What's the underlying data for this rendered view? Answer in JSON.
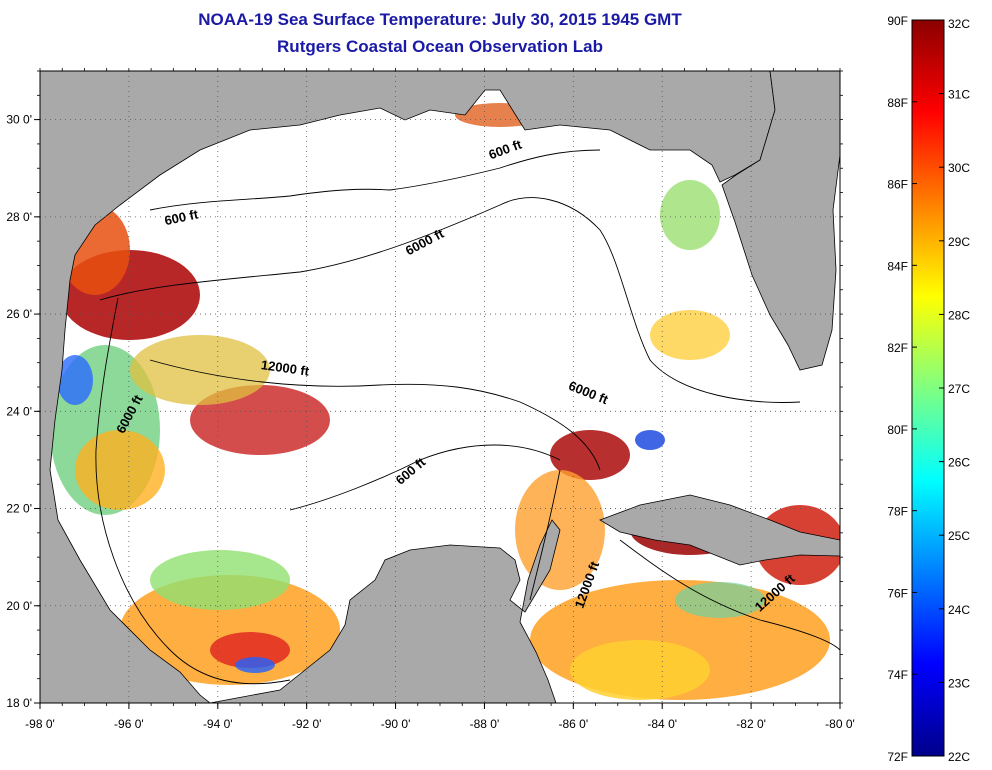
{
  "title": {
    "line1": "NOAA-19 Sea Surface Temperature:  July 30, 2015 1945 GMT",
    "line2": "Rutgers Coastal Ocean Observation Lab"
  },
  "map": {
    "x_ticks": [
      "-98 0'",
      "-96 0'",
      "-94 0'",
      "-92 0'",
      "-90 0'",
      "-88 0'",
      "-86 0'",
      "-84 0'",
      "-82 0'",
      "-80 0'"
    ],
    "y_ticks": [
      "18 0'",
      "20 0'",
      "22 0'",
      "24 0'",
      "26 0'",
      "28 0'",
      "30 0'"
    ],
    "lon_range": [
      -98,
      -80
    ],
    "lat_range": [
      18,
      31
    ],
    "contour_labels": [
      {
        "text": "600 ft",
        "lon": -94.8,
        "lat": 27.9,
        "angle": -12
      },
      {
        "text": "600 ft",
        "lon": -87.5,
        "lat": 29.3,
        "angle": -20
      },
      {
        "text": "6000 ft",
        "lon": -89.3,
        "lat": 27.4,
        "angle": -28
      },
      {
        "text": "6000 ft",
        "lon": -85.7,
        "lat": 24.3,
        "angle": 22
      },
      {
        "text": "6000 ft",
        "lon": -95.9,
        "lat": 23.9,
        "angle": -62
      },
      {
        "text": "12000 ft",
        "lon": -92.5,
        "lat": 24.8,
        "angle": 8
      },
      {
        "text": "600 ft",
        "lon": -89.6,
        "lat": 22.7,
        "angle": -40
      },
      {
        "text": "12000 ft",
        "lon": -85.6,
        "lat": 20.4,
        "angle": -70
      },
      {
        "text": "12000 ft",
        "lon": -81.4,
        "lat": 20.2,
        "angle": -42
      }
    ],
    "colors": {
      "land": "#a9a9a9",
      "water_nodata": "#ffffff",
      "contour": "#000000",
      "grid": "#606060"
    }
  },
  "colorbar": {
    "fahrenheit_labels": [
      "90F",
      "88F",
      "86F",
      "84F",
      "82F",
      "80F",
      "78F",
      "76F",
      "74F",
      "72F"
    ],
    "celsius_labels": [
      "32C",
      "31C",
      "30C",
      "29C",
      "28C",
      "27C",
      "26C",
      "25C",
      "24C",
      "23C",
      "22C"
    ],
    "gradient": [
      "#8b0000",
      "#ff0000",
      "#ff8000",
      "#ffff00",
      "#80ff80",
      "#00ffff",
      "#0080ff",
      "#0000ff",
      "#00008b"
    ]
  }
}
